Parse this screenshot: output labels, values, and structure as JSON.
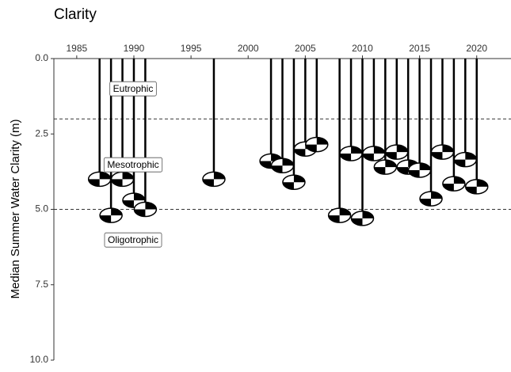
{
  "chart_data": {
    "type": "secchi",
    "title": "Clarity",
    "y_label": "Median Summer Water Clarity (m)",
    "x": [
      1987,
      1988,
      1989,
      1990,
      1991,
      1997,
      2002,
      2003,
      2004,
      2005,
      2006,
      2008,
      2009,
      2010,
      2011,
      2012,
      2013,
      2014,
      2015,
      2016,
      2017,
      2018,
      2019,
      2020
    ],
    "values": [
      4.0,
      5.2,
      4.0,
      4.7,
      5.0,
      4.0,
      3.4,
      3.55,
      4.1,
      3.0,
      2.85,
      5.2,
      3.15,
      5.3,
      3.15,
      3.6,
      3.1,
      3.6,
      3.7,
      4.65,
      3.1,
      4.15,
      3.35,
      4.25
    ],
    "color": "#000000",
    "xlim": [
      1983,
      2023
    ],
    "xticks": [
      1985,
      1990,
      1995,
      2000,
      2005,
      2010,
      2015,
      2020
    ],
    "ylim": [
      0,
      10
    ],
    "y_reversed": true,
    "yticks": [
      {
        "value": 0,
        "label": "0.0"
      },
      {
        "value": 2.5,
        "label": "2.5"
      },
      {
        "value": 5,
        "label": "5.0"
      },
      {
        "value": 7.5,
        "label": "7.5"
      },
      {
        "value": 10,
        "label": "10.0"
      }
    ],
    "reference_lines": [
      2,
      5
    ],
    "annotations": [
      "Eutrophic",
      "Mesotrophic",
      "Oligotrophic"
    ]
  }
}
